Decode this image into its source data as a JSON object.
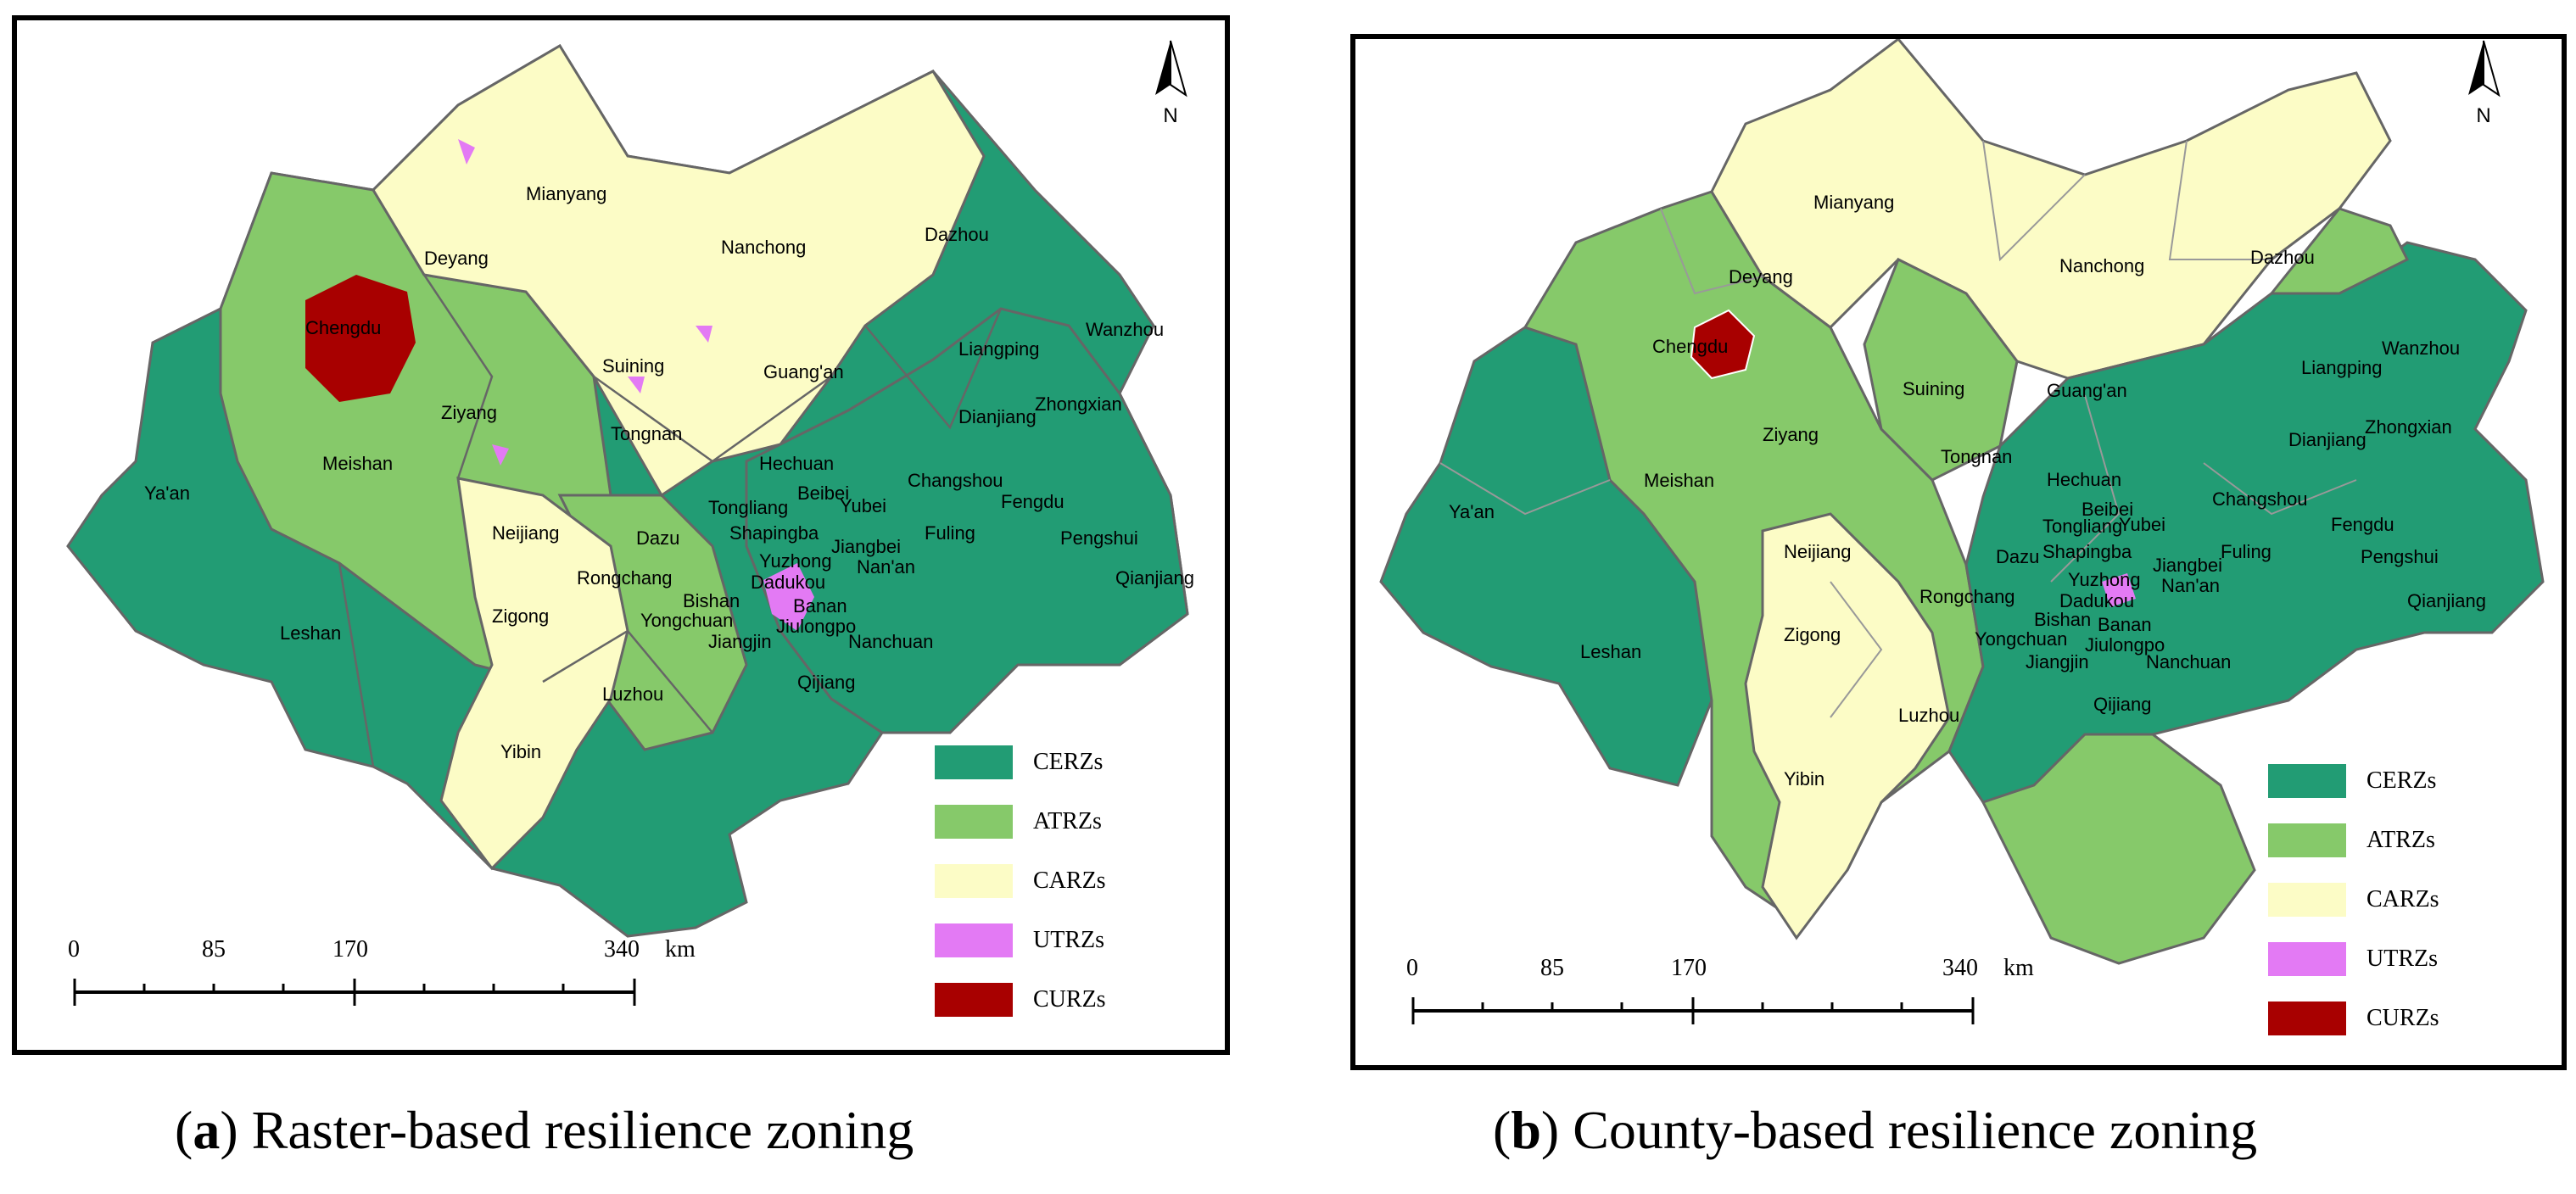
{
  "colors": {
    "CERZs": "#229c74",
    "ATRZs": "#86c96a",
    "CARZs": "#fcfcc6",
    "UTRZs": "#e37af4",
    "CURZs": "#a80000",
    "boundary": "#666666"
  },
  "north_arrow": {
    "label": "N",
    "icon": "north-arrow-icon"
  },
  "legend": [
    {
      "key": "CERZs",
      "label": "CERZs"
    },
    {
      "key": "ATRZs",
      "label": "ATRZs"
    },
    {
      "key": "CARZs",
      "label": "CARZs"
    },
    {
      "key": "UTRZs",
      "label": "UTRZs"
    },
    {
      "key": "CURZs",
      "label": "CURZs"
    }
  ],
  "scale": {
    "ticks": [
      "0",
      "85",
      "170",
      "340"
    ],
    "unit": "km"
  },
  "panels": [
    {
      "id": "a",
      "caption_letter": "a",
      "caption_text": "Raster-based resilience zoning",
      "places": [
        {
          "name": "Mianyang"
        },
        {
          "name": "Nanchong"
        },
        {
          "name": "Dazhou"
        },
        {
          "name": "Deyang"
        },
        {
          "name": "Chengdu"
        },
        {
          "name": "Suining"
        },
        {
          "name": "Guang'an"
        },
        {
          "name": "Liangping"
        },
        {
          "name": "Wanzhou"
        },
        {
          "name": "Zhongxian"
        },
        {
          "name": "Dianjiang"
        },
        {
          "name": "Ziyang"
        },
        {
          "name": "Tongnan"
        },
        {
          "name": "Hechuan"
        },
        {
          "name": "Changshou"
        },
        {
          "name": "Meishan"
        },
        {
          "name": "Beibei"
        },
        {
          "name": "Yubei"
        },
        {
          "name": "Fengdu"
        },
        {
          "name": "Ya'an"
        },
        {
          "name": "Tongliang"
        },
        {
          "name": "Neijiang"
        },
        {
          "name": "Dazu"
        },
        {
          "name": "Shapingba"
        },
        {
          "name": "Jiangbei"
        },
        {
          "name": "Fuling"
        },
        {
          "name": "Pengshui"
        },
        {
          "name": "Yuzhong"
        },
        {
          "name": "Nan'an"
        },
        {
          "name": "Rongchang"
        },
        {
          "name": "Dadukou"
        },
        {
          "name": "Qianjiang"
        },
        {
          "name": "Bishan"
        },
        {
          "name": "Banan"
        },
        {
          "name": "Zigong"
        },
        {
          "name": "Yongchuan"
        },
        {
          "name": "Jiulongpo"
        },
        {
          "name": "Nanchuan"
        },
        {
          "name": "Leshan"
        },
        {
          "name": "Jiangjin"
        },
        {
          "name": "Qijiang"
        },
        {
          "name": "Luzhou"
        },
        {
          "name": "Yibin"
        }
      ]
    },
    {
      "id": "b",
      "caption_letter": "b",
      "caption_text": "County-based resilience zoning",
      "places": [
        {
          "name": "Mianyang"
        },
        {
          "name": "Nanchong"
        },
        {
          "name": "Dazhou"
        },
        {
          "name": "Deyang"
        },
        {
          "name": "Chengdu"
        },
        {
          "name": "Suining"
        },
        {
          "name": "Guang'an"
        },
        {
          "name": "Liangping"
        },
        {
          "name": "Wanzhou"
        },
        {
          "name": "Zhongxian"
        },
        {
          "name": "Dianjiang"
        },
        {
          "name": "Ziyang"
        },
        {
          "name": "Tongnan"
        },
        {
          "name": "Hechuan"
        },
        {
          "name": "Changshou"
        },
        {
          "name": "Meishan"
        },
        {
          "name": "Beibei"
        },
        {
          "name": "Yubei"
        },
        {
          "name": "Fengdu"
        },
        {
          "name": "Ya'an"
        },
        {
          "name": "Tongliang"
        },
        {
          "name": "Shapingba"
        },
        {
          "name": "Jiangbei"
        },
        {
          "name": "Fuling"
        },
        {
          "name": "Pengshui"
        },
        {
          "name": "Neijiang"
        },
        {
          "name": "Dazu"
        },
        {
          "name": "Yuzhong"
        },
        {
          "name": "Nan'an"
        },
        {
          "name": "Rongchang"
        },
        {
          "name": "Dadukou"
        },
        {
          "name": "Qianjiang"
        },
        {
          "name": "Bishan"
        },
        {
          "name": "Banan"
        },
        {
          "name": "Zigong"
        },
        {
          "name": "Yongchuan"
        },
        {
          "name": "Jiulongpo"
        },
        {
          "name": "Nanchuan"
        },
        {
          "name": "Leshan"
        },
        {
          "name": "Jiangjin"
        },
        {
          "name": "Qijiang"
        },
        {
          "name": "Luzhou"
        },
        {
          "name": "Yibin"
        }
      ]
    }
  ]
}
